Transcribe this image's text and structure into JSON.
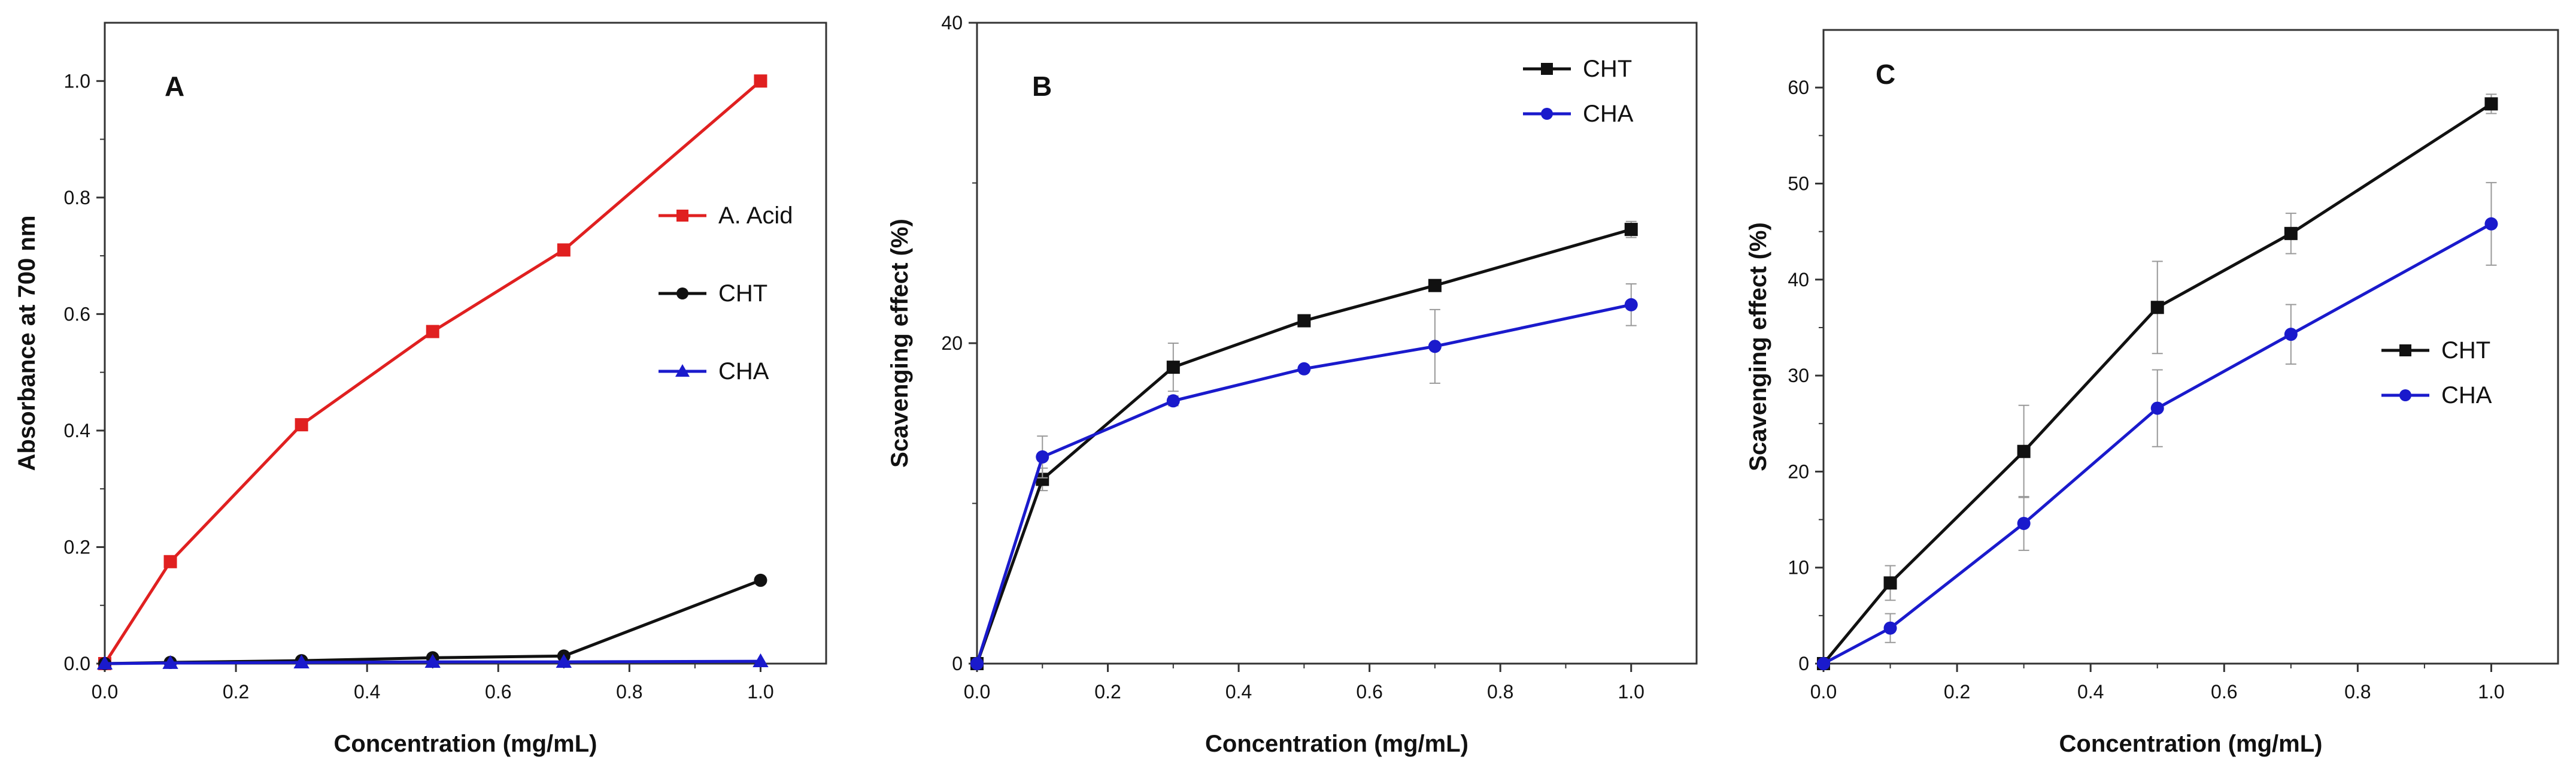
{
  "chart_data": [
    {
      "type": "line",
      "panel_label": "A",
      "xlabel": "Concentration (mg/mL)",
      "ylabel": "Absorbance at 700 nm",
      "xlim": [
        0,
        1.1
      ],
      "ylim": [
        0,
        1.1
      ],
      "xticks": [
        "0.0",
        "0.2",
        "0.4",
        "0.6",
        "0.8",
        "1.0"
      ],
      "yticks": [
        "0.0",
        "0.2",
        "0.4",
        "0.6",
        "0.8",
        "1.0"
      ],
      "legend_position": "right-middle",
      "grid": false,
      "x": [
        0,
        0.1,
        0.3,
        0.5,
        0.7,
        1.0
      ],
      "series": [
        {
          "name": "A. Acid",
          "color": "#e02020",
          "marker": "square",
          "values": [
            0,
            0.175,
            0.41,
            0.57,
            0.71,
            1.0
          ]
        },
        {
          "name": "CHT",
          "color": "#111111",
          "marker": "circle",
          "values": [
            0,
            0.002,
            0.005,
            0.01,
            0.013,
            0.143
          ]
        },
        {
          "name": "CHA",
          "color": "#1a1acc",
          "marker": "triangle",
          "values": [
            0,
            0.001,
            0.002,
            0.003,
            0.003,
            0.004
          ]
        }
      ]
    },
    {
      "type": "line",
      "panel_label": "B",
      "xlabel": "Concentration (mg/mL)",
      "ylabel": "Scavenging effect (%)",
      "xlim": [
        0,
        1.1
      ],
      "ylim": [
        0,
        40
      ],
      "xticks": [
        "0.0",
        "0.2",
        "0.4",
        "0.6",
        "0.8",
        "1.0"
      ],
      "yticks": [
        "0",
        "20",
        "40"
      ],
      "legend_position": "top-right",
      "grid": false,
      "x": [
        0,
        0.1,
        0.3,
        0.5,
        0.7,
        1.0
      ],
      "series": [
        {
          "name": "CHT",
          "color": "#111111",
          "marker": "square",
          "values": [
            0,
            11.5,
            18.5,
            21.4,
            23.6,
            27.1
          ],
          "errors": [
            0,
            0.7,
            1.5,
            0.2,
            0.3,
            0.5
          ]
        },
        {
          "name": "CHA",
          "color": "#1a1acc",
          "marker": "circle",
          "values": [
            0,
            12.9,
            16.4,
            18.4,
            19.8,
            22.4
          ],
          "errors": [
            0,
            1.3,
            0.3,
            0.2,
            2.3,
            1.3
          ]
        }
      ]
    },
    {
      "type": "line",
      "panel_label": "C",
      "xlabel": "Concentration (mg/mL)",
      "ylabel": "Scavenging effect (%)",
      "xlim": [
        0,
        1.1
      ],
      "ylim": [
        0,
        66
      ],
      "xticks": [
        "0.0",
        "0.2",
        "0.4",
        "0.6",
        "0.8",
        "1.0"
      ],
      "yticks": [
        "0",
        "10",
        "20",
        "30",
        "40",
        "50",
        "60"
      ],
      "legend_position": "right-middle",
      "grid": false,
      "x": [
        0,
        0.1,
        0.3,
        0.5,
        0.7,
        1.0
      ],
      "series": [
        {
          "name": "CHT",
          "color": "#111111",
          "marker": "square",
          "values": [
            0,
            8.4,
            22.1,
            37.1,
            44.8,
            58.3
          ],
          "errors": [
            0,
            1.8,
            4.8,
            4.8,
            2.1,
            1.0
          ]
        },
        {
          "name": "CHA",
          "color": "#1a1acc",
          "marker": "circle",
          "values": [
            0,
            3.7,
            14.6,
            26.6,
            34.3,
            45.8
          ],
          "errors": [
            0,
            1.5,
            2.8,
            4.0,
            3.1,
            4.3
          ]
        }
      ]
    }
  ]
}
